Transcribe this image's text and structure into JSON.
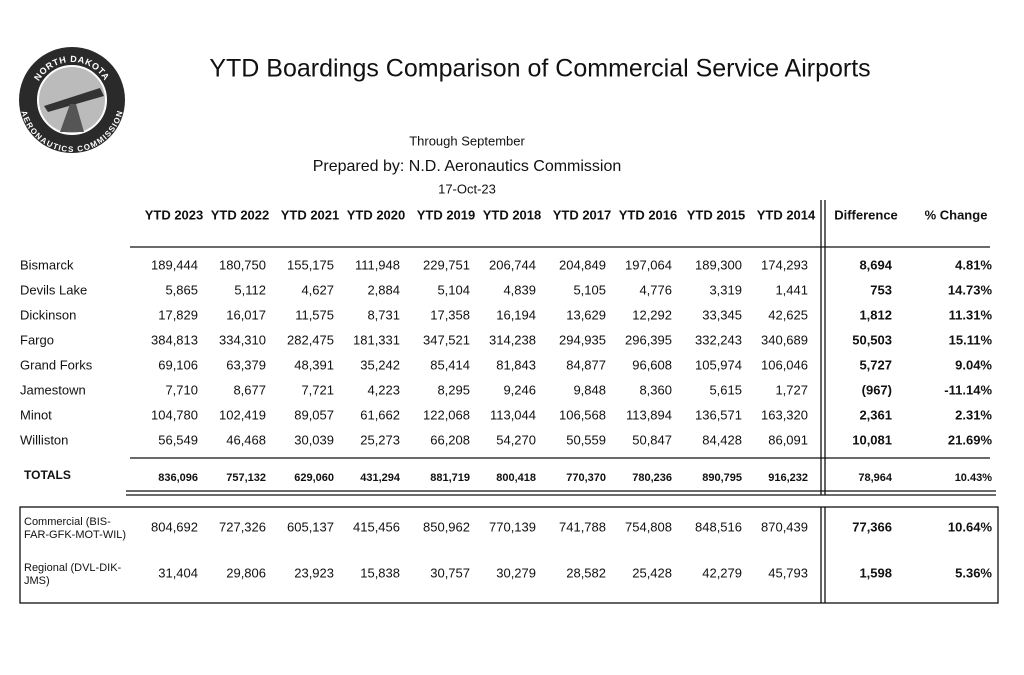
{
  "header": {
    "title": "YTD Boardings Comparison of Commercial Service Airports",
    "subtitle": "Through September",
    "prepared_by": "Prepared by: N.D. Aeronautics Commission",
    "date": "17-Oct-23"
  },
  "logo": {
    "top": "NORTH DAKOTA",
    "bottom": "AERONAUTICS COMMISSION"
  },
  "table": {
    "columns": [
      "YTD 2023",
      "YTD 2022",
      "YTD 2021",
      "YTD 2020",
      "YTD 2019",
      "YTD 2018",
      "YTD 2017",
      "YTD 2016",
      "YTD 2015",
      "YTD 2014",
      "Difference",
      "% Change"
    ],
    "rows": [
      [
        "Bismarck",
        "189,444",
        "180,750",
        "155,175",
        "111,948",
        "229,751",
        "206,744",
        "204,849",
        "197,064",
        "189,300",
        "174,293",
        "8,694",
        "4.81%"
      ],
      [
        "Devils Lake",
        "5,865",
        "5,112",
        "4,627",
        "2,884",
        "5,104",
        "4,839",
        "5,105",
        "4,776",
        "3,319",
        "1,441",
        "753",
        "14.73%"
      ],
      [
        "Dickinson",
        "17,829",
        "16,017",
        "11,575",
        "8,731",
        "17,358",
        "16,194",
        "13,629",
        "12,292",
        "33,345",
        "42,625",
        "1,812",
        "11.31%"
      ],
      [
        "Fargo",
        "384,813",
        "334,310",
        "282,475",
        "181,331",
        "347,521",
        "314,238",
        "294,935",
        "296,395",
        "332,243",
        "340,689",
        "50,503",
        "15.11%"
      ],
      [
        "Grand Forks",
        "69,106",
        "63,379",
        "48,391",
        "35,242",
        "85,414",
        "81,843",
        "84,877",
        "96,608",
        "105,974",
        "106,046",
        "5,727",
        "9.04%"
      ],
      [
        "Jamestown",
        "7,710",
        "8,677",
        "7,721",
        "4,223",
        "8,295",
        "9,246",
        "9,848",
        "8,360",
        "5,615",
        "1,727",
        "(967)",
        "-11.14%"
      ],
      [
        "Minot",
        "104,780",
        "102,419",
        "89,057",
        "61,662",
        "122,068",
        "113,044",
        "106,568",
        "113,894",
        "136,571",
        "163,320",
        "2,361",
        "2.31%"
      ],
      [
        "Williston",
        "56,549",
        "46,468",
        "30,039",
        "25,273",
        "66,208",
        "54,270",
        "50,559",
        "50,847",
        "84,428",
        "86,091",
        "10,081",
        "21.69%"
      ]
    ],
    "totals": [
      "TOTALS",
      "836,096",
      "757,132",
      "629,060",
      "431,294",
      "881,719",
      "800,418",
      "770,370",
      "780,236",
      "890,795",
      "916,232",
      "78,964",
      "10.43%"
    ],
    "groups": [
      [
        [
          "Commercial (BIS-",
          "FAR-GFK-MOT-WIL)"
        ],
        "804,692",
        "727,326",
        "605,137",
        "415,456",
        "850,962",
        "770,139",
        "741,788",
        "754,808",
        "848,516",
        "870,439",
        "77,366",
        "10.64%"
      ],
      [
        [
          "Regional (DVL-DIK-",
          "JMS)"
        ],
        "31,404",
        "29,806",
        "23,923",
        "15,838",
        "30,757",
        "30,279",
        "28,582",
        "25,428",
        "42,279",
        "45,793",
        "1,598",
        "5.36%"
      ]
    ]
  }
}
